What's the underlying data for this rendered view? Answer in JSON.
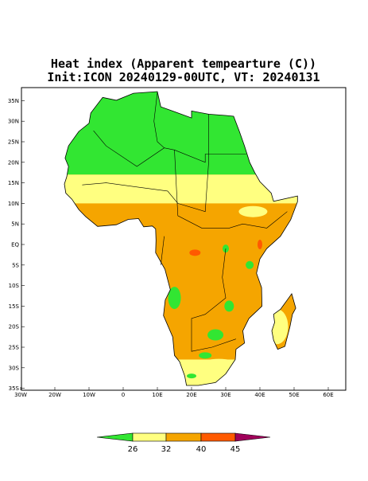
{
  "header": {
    "title": "Heat index (Apparent tempearture (C))",
    "subtitle": "Init:ICON 20240129-00UTC, VT: 20240131"
  },
  "map": {
    "lat_labels": [
      "35N",
      "30N",
      "25N",
      "20N",
      "15N",
      "10N",
      "5N",
      "EQ",
      "5S",
      "10S",
      "15S",
      "20S",
      "25S",
      "30S",
      "35S"
    ],
    "lon_labels": [
      "30W",
      "20W",
      "10W",
      "0",
      "10E",
      "20E",
      "30E",
      "40E",
      "50E",
      "60E"
    ]
  },
  "colorbar": {
    "labels": [
      "26",
      "32",
      "40",
      "45"
    ],
    "colors": [
      "#32e632",
      "#ffff80",
      "#f5a500",
      "#ff5a00",
      "#a0005a"
    ]
  }
}
